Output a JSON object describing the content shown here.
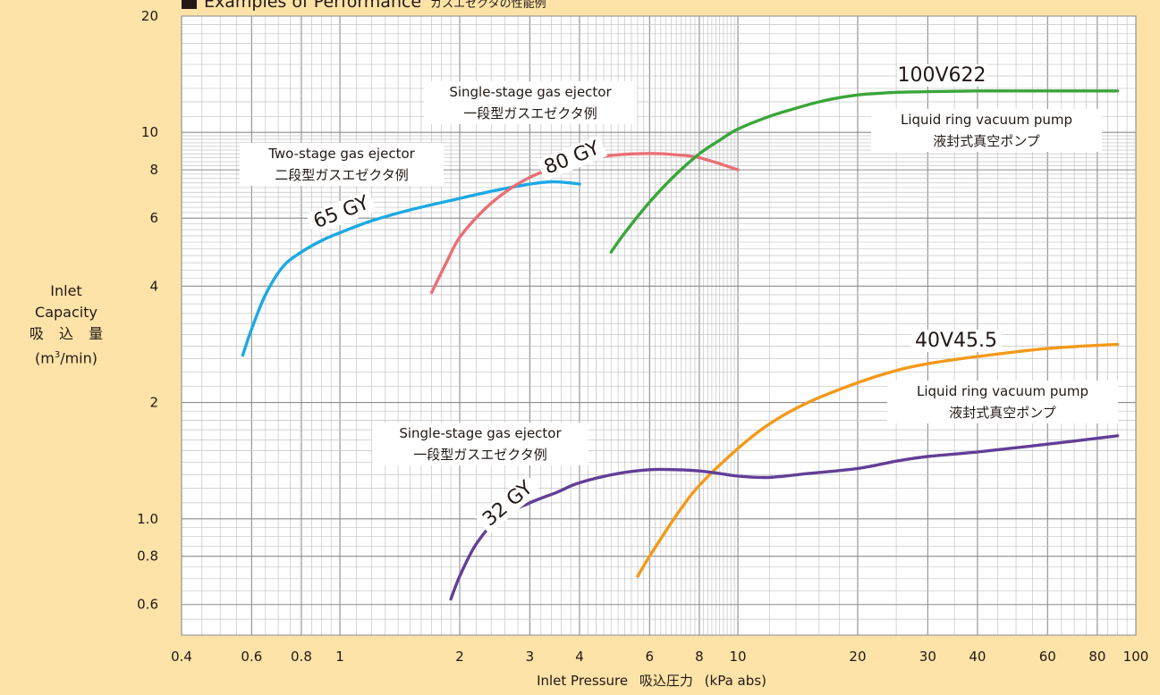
{
  "chart_data": {
    "type": "line",
    "title": "Examples of Performance",
    "title_jp": "ガスエゼクタの性能例",
    "xlabel": {
      "en": "Inlet Pressure",
      "jp": "吸込圧力",
      "unit": "(kPa abs)"
    },
    "ylabel": {
      "line1": "Inlet",
      "line2": "Capacity",
      "line3": "吸 込 量",
      "unit_pre": "(m",
      "unit_sup": "3",
      "unit_post": "/min)"
    },
    "x_scale": "log",
    "y_scale": "log",
    "xlim": [
      0.4,
      100
    ],
    "ylim": [
      0.5,
      20
    ],
    "grid": true,
    "x_ticks": [
      {
        "value": 0.4,
        "label": "0.4"
      },
      {
        "value": 0.6,
        "label": "0.6"
      },
      {
        "value": 0.8,
        "label": "0.8"
      },
      {
        "value": 1,
        "label": "1"
      },
      {
        "value": 2,
        "label": "2"
      },
      {
        "value": 3,
        "label": "3"
      },
      {
        "value": 4,
        "label": "4"
      },
      {
        "value": 6,
        "label": "6"
      },
      {
        "value": 8,
        "label": "8"
      },
      {
        "value": 10,
        "label": "10"
      },
      {
        "value": 20,
        "label": "20"
      },
      {
        "value": 30,
        "label": "30"
      },
      {
        "value": 40,
        "label": "40"
      },
      {
        "value": 60,
        "label": "60"
      },
      {
        "value": 80,
        "label": "80"
      },
      {
        "value": 100,
        "label": "100"
      }
    ],
    "y_ticks": [
      {
        "value": 0.6,
        "label": "0.6"
      },
      {
        "value": 0.8,
        "label": "0.8"
      },
      {
        "value": 1.0,
        "label": "1.0"
      },
      {
        "value": 2,
        "label": "2"
      },
      {
        "value": 4,
        "label": "4"
      },
      {
        "value": 6,
        "label": "6"
      },
      {
        "value": 8,
        "label": "8"
      },
      {
        "value": 10,
        "label": "10"
      },
      {
        "value": 20,
        "label": "20"
      }
    ],
    "series": [
      {
        "name": "65 GY",
        "color": "#1ba9e4",
        "x": [
          0.57,
          0.6,
          0.65,
          0.72,
          0.8,
          0.9,
          1.0,
          1.2,
          1.5,
          2.0,
          2.5,
          3.0,
          3.4,
          3.8,
          4.0
        ],
        "y": [
          2.65,
          3.1,
          3.8,
          4.5,
          4.9,
          5.25,
          5.5,
          5.9,
          6.3,
          6.75,
          7.1,
          7.35,
          7.45,
          7.4,
          7.35
        ]
      },
      {
        "name": "80 GY",
        "color": "#ea6f75",
        "x": [
          1.7,
          1.85,
          2.0,
          2.3,
          2.6,
          3.0,
          3.5,
          4.0,
          4.5,
          5.0,
          5.5,
          6.0,
          6.5,
          7.0,
          7.5,
          8.0,
          9.0,
          10.0
        ],
        "y": [
          3.85,
          4.6,
          5.35,
          6.3,
          7.0,
          7.65,
          8.15,
          8.45,
          8.65,
          8.75,
          8.8,
          8.82,
          8.8,
          8.75,
          8.7,
          8.6,
          8.3,
          8.0
        ]
      },
      {
        "name": "100V622",
        "color": "#3aa53a",
        "x": [
          4.8,
          5.2,
          6.0,
          7.0,
          8.0,
          9.0,
          10.0,
          12.0,
          14.0,
          16.0,
          18.0,
          20.0,
          22.0,
          25.0,
          30.0,
          40.0,
          60.0,
          90.0
        ],
        "y": [
          4.9,
          5.5,
          6.6,
          7.8,
          8.8,
          9.55,
          10.2,
          11.0,
          11.55,
          12.0,
          12.3,
          12.5,
          12.6,
          12.7,
          12.75,
          12.8,
          12.8,
          12.8
        ]
      },
      {
        "name": "40V45.5",
        "color": "#f39a1a",
        "x": [
          5.6,
          6.0,
          7.0,
          8.0,
          10.0,
          12.0,
          15.0,
          20.0,
          25.0,
          30.0,
          40.0,
          60.0,
          90.0
        ],
        "y": [
          0.71,
          0.8,
          1.02,
          1.22,
          1.52,
          1.76,
          2.0,
          2.25,
          2.42,
          2.52,
          2.63,
          2.76,
          2.83
        ]
      },
      {
        "name": "32 GY",
        "color": "#633f97",
        "x": [
          1.9,
          2.0,
          2.2,
          2.5,
          3.0,
          3.5,
          4.0,
          5.0,
          6.0,
          7.0,
          8.0,
          9.0,
          10.0,
          12.0,
          15.0,
          20.0,
          25.0,
          30.0,
          40.0,
          60.0,
          90.0
        ],
        "y": [
          0.62,
          0.71,
          0.86,
          1.0,
          1.1,
          1.17,
          1.24,
          1.31,
          1.34,
          1.34,
          1.33,
          1.31,
          1.29,
          1.28,
          1.31,
          1.35,
          1.41,
          1.45,
          1.49,
          1.56,
          1.64
        ]
      }
    ],
    "annotations": [
      {
        "id": "lbl-65gy",
        "text": "65 GY",
        "series": "65 GY"
      },
      {
        "id": "lbl-80gy",
        "text": "80 GY",
        "series": "80 GY"
      },
      {
        "id": "lbl-32gy",
        "text": "32 GY",
        "series": "32 GY"
      },
      {
        "id": "lbl-100v",
        "text": "100V622",
        "series": "100V622"
      },
      {
        "id": "lbl-40v",
        "text": "40V45.5",
        "series": "40V45.5"
      }
    ],
    "notes": [
      {
        "id": "note-two-stage",
        "line1": "Two-stage gas ejector",
        "line2": "二段型ガスエゼクタ例"
      },
      {
        "id": "note-single-top",
        "line1": "Single-stage gas ejector",
        "line2": "一段型ガスエゼクタ例"
      },
      {
        "id": "note-lr-top",
        "line1": "Liquid ring vacuum pump",
        "line2": "液封式真空ポンプ"
      },
      {
        "id": "note-lr-bottom",
        "line1": "Liquid ring vacuum pump",
        "line2": "液封式真空ポンプ"
      },
      {
        "id": "note-single-bottom",
        "line1": "Single-stage gas ejector",
        "line2": "一段型ガスエゼクタ例"
      }
    ]
  }
}
